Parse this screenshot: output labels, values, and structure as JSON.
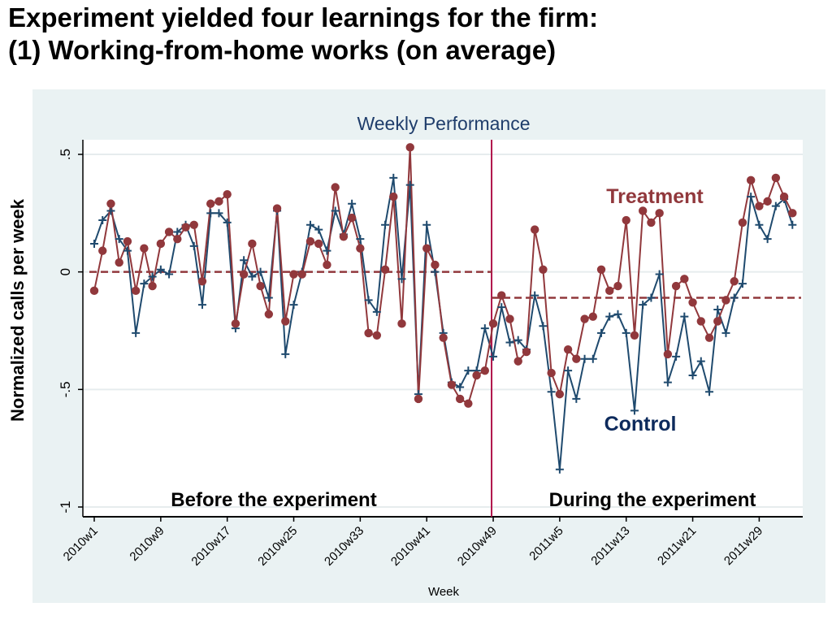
{
  "slide": {
    "title_line1": "Experiment yielded four learnings for the firm:",
    "title_line2": "(1) Working-from-home works (on average)"
  },
  "chart_data": {
    "type": "line",
    "title": "Weekly Performance",
    "xlabel": "Week",
    "ylabel": "Normalized calls per week",
    "ylim": [
      -1,
      0.5
    ],
    "yticks": [
      -1,
      -0.5,
      0,
      0.5
    ],
    "ytick_labels": [
      "-1",
      "-.5",
      "0",
      ".5"
    ],
    "x_tick_labels": [
      "2010w1",
      "2010w9",
      "2010w17",
      "2010w25",
      "2010w33",
      "2010w41",
      "2010w49",
      "2011w5",
      "2011w13",
      "2011w21",
      "2011w29"
    ],
    "x_start_label": "2010w1",
    "x_count": 85,
    "grid": true,
    "experiment_start": "2010w49",
    "region_labels": {
      "before": "Before the experiment",
      "during": "During the experiment"
    },
    "series": [
      {
        "name": "Treatment",
        "color": "#91383c",
        "marker": "circle",
        "values": [
          -0.08,
          0.09,
          0.29,
          0.04,
          0.13,
          -0.08,
          0.1,
          -0.06,
          0.12,
          0.17,
          0.14,
          0.19,
          0.2,
          -0.04,
          0.29,
          0.3,
          0.33,
          -0.22,
          -0.01,
          0.12,
          -0.06,
          -0.18,
          0.27,
          -0.21,
          -0.01,
          -0.01,
          0.13,
          0.12,
          0.03,
          0.36,
          0.15,
          0.23,
          0.1,
          -0.26,
          -0.27,
          0.01,
          0.32,
          -0.22,
          0.53,
          -0.54,
          0.1,
          0.03,
          -0.28,
          -0.48,
          -0.54,
          -0.56,
          -0.44,
          -0.42,
          -0.22,
          -0.1,
          -0.2,
          -0.38,
          -0.34,
          0.18,
          0.01,
          -0.43,
          -0.52,
          -0.33,
          -0.37,
          -0.2,
          -0.19,
          0.01,
          -0.08,
          -0.06,
          0.22,
          -0.27,
          0.26,
          0.21,
          0.25,
          -0.35,
          -0.06,
          -0.03,
          -0.13,
          -0.21,
          -0.28,
          -0.21,
          -0.12,
          -0.04,
          0.21,
          0.39,
          0.28,
          0.3,
          0.4,
          0.32,
          0.25
        ]
      },
      {
        "name": "Control",
        "color": "#1f4a6e",
        "marker": "plus",
        "values": [
          0.12,
          0.22,
          0.26,
          0.14,
          0.09,
          -0.26,
          -0.05,
          -0.02,
          0.01,
          -0.01,
          0.17,
          0.2,
          0.11,
          -0.14,
          0.25,
          0.25,
          0.21,
          -0.24,
          0.05,
          -0.02,
          0.0,
          -0.11,
          0.26,
          -0.35,
          -0.14,
          0.0,
          0.2,
          0.18,
          0.09,
          0.26,
          0.16,
          0.29,
          0.14,
          -0.12,
          -0.17,
          0.2,
          0.4,
          -0.03,
          0.37,
          -0.52,
          0.2,
          0.0,
          -0.26,
          -0.47,
          -0.49,
          -0.42,
          -0.42,
          -0.24,
          -0.36,
          -0.15,
          -0.3,
          -0.29,
          -0.33,
          -0.1,
          -0.23,
          -0.51,
          -0.84,
          -0.42,
          -0.54,
          -0.37,
          -0.37,
          -0.26,
          -0.19,
          -0.18,
          -0.26,
          -0.59,
          -0.14,
          -0.11,
          -0.01,
          -0.47,
          -0.36,
          -0.19,
          -0.44,
          -0.38,
          -0.51,
          -0.16,
          -0.26,
          -0.11,
          -0.05,
          0.32,
          0.2,
          0.14,
          0.28,
          0.31,
          0.2
        ]
      }
    ],
    "reference_lines": [
      {
        "from": "2010w1",
        "to": "2010w49",
        "value": 0.0
      },
      {
        "from": "2010w49",
        "to": "2011w33",
        "value": -0.11
      }
    ]
  }
}
